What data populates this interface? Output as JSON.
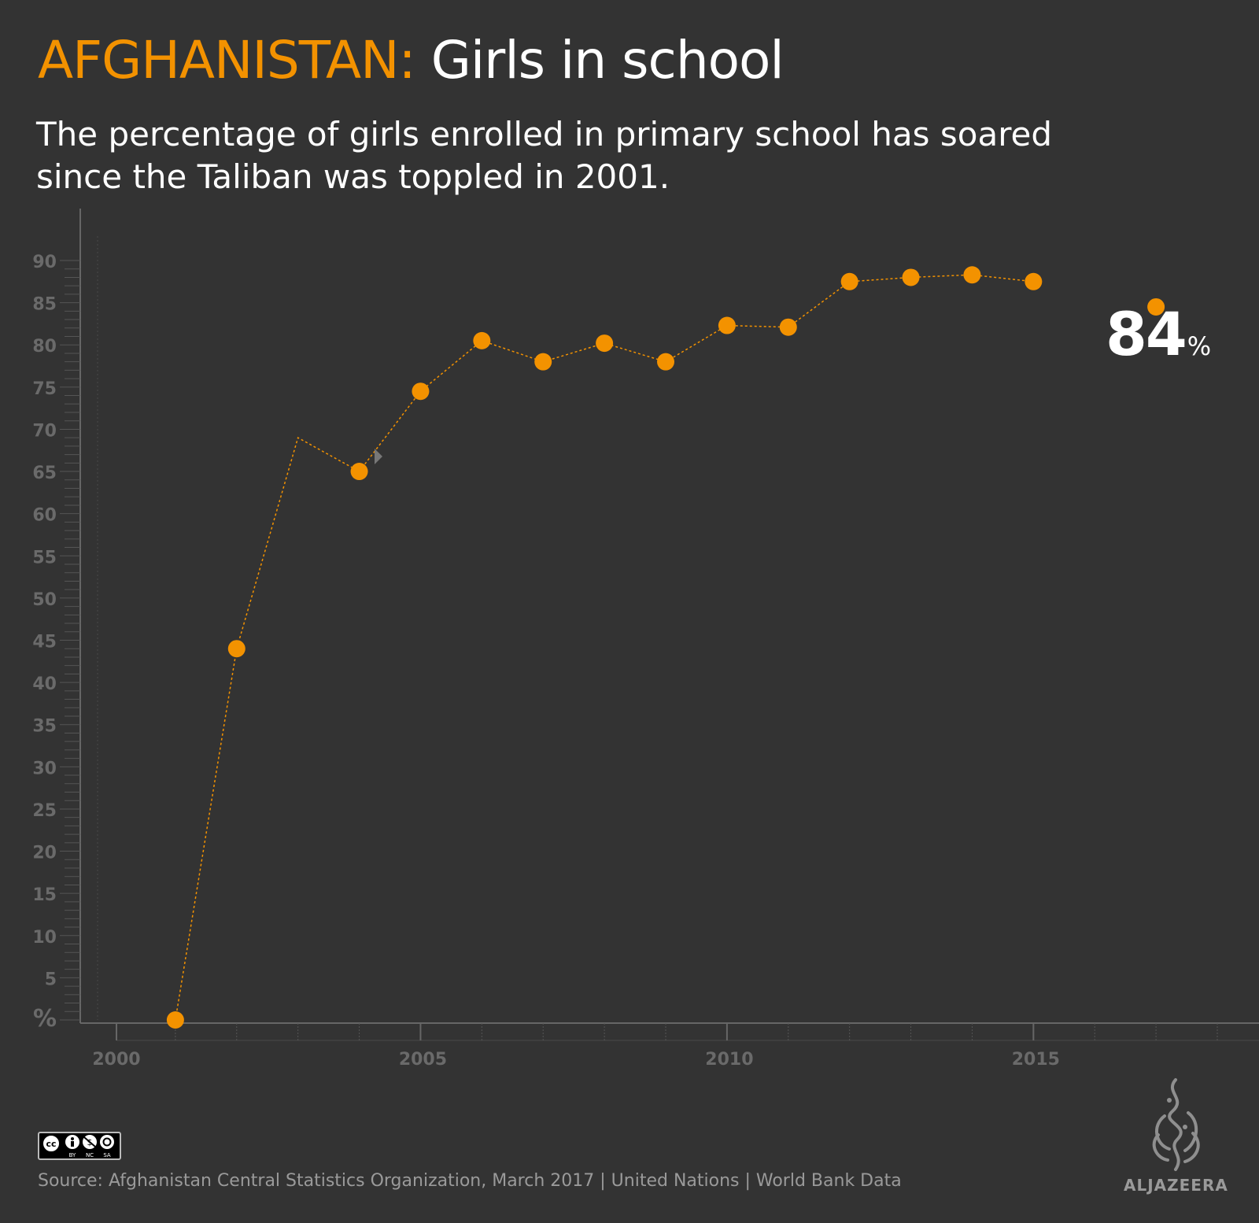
{
  "header": {
    "title_highlight": "AFGHANISTAN:",
    "title_rest": "Girls in school",
    "subtitle": "The percentage of girls enrolled in primary school has soared since the Taliban was toppled in 2001."
  },
  "callout": {
    "value": "84",
    "unit": "%"
  },
  "footer": {
    "source": "Source: Afghanistan Central Statistics Organization, March 2017  |  United Nations  |  World Bank Data",
    "license_labels": [
      "BY",
      "NC",
      "SA"
    ],
    "logo_text": "ALJAZEERA"
  },
  "colors": {
    "background": "#333333",
    "accent": "#f39200",
    "axis": "#666666",
    "muted_text": "#9a9a9a"
  },
  "chart_data": {
    "type": "line",
    "title": "",
    "xlabel": "",
    "ylabel": "%",
    "xlim": [
      2000,
      2018
    ],
    "ylim": [
      0,
      90
    ],
    "x_ticks": [
      2000,
      2005,
      2010,
      2015
    ],
    "y_ticks": [
      5,
      10,
      15,
      20,
      25,
      30,
      35,
      40,
      45,
      50,
      55,
      60,
      65,
      70,
      75,
      80,
      85,
      90
    ],
    "grid": false,
    "series": [
      {
        "points": [
          {
            "x": 2001,
            "y": 0,
            "marker": true
          },
          {
            "x": 2002,
            "y": 44,
            "marker": true
          },
          {
            "x": 2003,
            "y": 69,
            "marker": false
          },
          {
            "x": 2004,
            "y": 65,
            "marker": true
          },
          {
            "x": 2005,
            "y": 74.5,
            "marker": true
          },
          {
            "x": 2006,
            "y": 80.5,
            "marker": true
          },
          {
            "x": 2007,
            "y": 78,
            "marker": true
          },
          {
            "x": 2008,
            "y": 80.2,
            "marker": true
          },
          {
            "x": 2009,
            "y": 78,
            "marker": true
          },
          {
            "x": 2010,
            "y": 82.3,
            "marker": true
          },
          {
            "x": 2011,
            "y": 82.1,
            "marker": true
          },
          {
            "x": 2012,
            "y": 87.5,
            "marker": true
          },
          {
            "x": 2013,
            "y": 88,
            "marker": true
          },
          {
            "x": 2014,
            "y": 88.3,
            "marker": true
          },
          {
            "x": 2015,
            "y": 87.5,
            "marker": true
          }
        ]
      },
      {
        "points": [
          {
            "x": 2017,
            "y": 84.5,
            "marker": true
          }
        ]
      }
    ]
  }
}
